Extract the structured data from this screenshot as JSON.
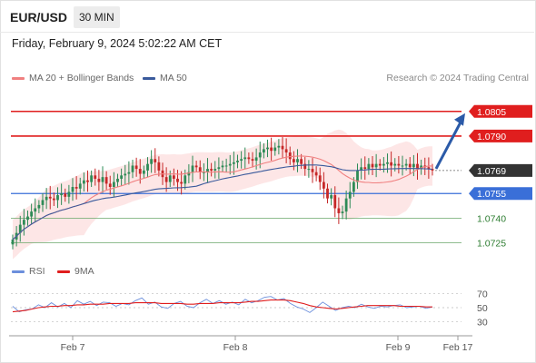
{
  "header": {
    "symbol": "EUR/USD",
    "timeframe": "30 MIN",
    "datetime": "Friday, February 9, 2024 5:02:22 AM CET"
  },
  "legend": {
    "ma20_label": "MA 20 + Bollinger Bands",
    "ma50_label": "MA 50",
    "credit": "Research © 2024 Trading Central"
  },
  "rsi_legend": {
    "rsi_label": "RSI",
    "ma_label": "9MA"
  },
  "colors": {
    "resistance": "#e01e1e",
    "support": "#3a6fd8",
    "green_level": "#6aa76a",
    "current_label": "#333333",
    "candle_up": "#2e8b57",
    "candle_down": "#c62828",
    "ma20": "#f08080",
    "ma50": "#3a5a9c",
    "bollinger_fill": "#fde2e2",
    "arrow": "#2b5aa8",
    "rsi_line": "#6c8fdc",
    "rsi_ma": "#e01e1e"
  },
  "chart_data": [
    {
      "type": "candlestick",
      "title": "EUR/USD 30 MIN",
      "x_ticks": [
        "Feb 7",
        "Feb 8",
        "Feb 9",
        "Feb 17"
      ],
      "ylim": [
        1.0717,
        1.0822
      ],
      "indicators": [
        "MA 20 + Bollinger Bands",
        "MA 50"
      ],
      "levels": [
        {
          "value": "1.0805",
          "price": 1.0805,
          "kind": "resistance"
        },
        {
          "value": "1.0790",
          "price": 1.079,
          "kind": "resistance"
        },
        {
          "value": "1.0769",
          "price": 1.0769,
          "kind": "current"
        },
        {
          "value": "1.0755",
          "price": 1.0755,
          "kind": "support"
        },
        {
          "value": "1.0740",
          "price": 1.074,
          "kind": "minor"
        },
        {
          "value": "1.0725",
          "price": 1.0725,
          "kind": "minor"
        }
      ],
      "close_series": [
        1.0727,
        1.0731,
        1.0736,
        1.0739,
        1.0741,
        1.0744,
        1.0746,
        1.0748,
        1.0751,
        1.0753,
        1.0752,
        1.0751,
        1.0754,
        1.0755,
        1.0753,
        1.0756,
        1.0759,
        1.0758,
        1.0761,
        1.0763,
        1.0762,
        1.0766,
        1.0764,
        1.0762,
        1.0765,
        1.0761,
        1.0759,
        1.0762,
        1.0764,
        1.0766,
        1.0767,
        1.0768,
        1.0772,
        1.077,
        1.0767,
        1.0769,
        1.0773,
        1.0776,
        1.0774,
        1.0769,
        1.0765,
        1.0762,
        1.0766,
        1.0764,
        1.0762,
        1.0761,
        1.0766,
        1.0768,
        1.0772,
        1.0771,
        1.0768,
        1.0768,
        1.077,
        1.0769,
        1.077,
        1.0771,
        1.0772,
        1.0772,
        1.0773,
        1.0774,
        1.0775,
        1.0776,
        1.0777,
        1.0776,
        1.0775,
        1.0777,
        1.078,
        1.0782,
        1.0783,
        1.0781,
        1.0783,
        1.0784,
        1.0782,
        1.078,
        1.0776,
        1.0774,
        1.0776,
        1.0773,
        1.077,
        1.077,
        1.0768,
        1.0766,
        1.0762,
        1.0758,
        1.0752,
        1.0754,
        1.0746,
        1.0743,
        1.0744,
        1.0752,
        1.0756,
        1.0762,
        1.0769,
        1.0771,
        1.077,
        1.0773,
        1.0771,
        1.0773,
        1.0772,
        1.0773,
        1.0774,
        1.0772,
        1.0773,
        1.0772,
        1.0772,
        1.0773,
        1.0771,
        1.0773,
        1.077,
        1.0772,
        1.0771,
        1.077,
        1.0769
      ],
      "projection": {
        "from": 1.0769,
        "to": 1.0805
      }
    },
    {
      "type": "line",
      "title": "RSI",
      "y_ticks": [
        70,
        50,
        30
      ],
      "ylim": [
        20,
        80
      ],
      "series": [
        {
          "name": "RSI",
          "values": [
            52,
            44,
            47,
            48,
            54,
            50,
            57,
            51,
            56,
            50,
            60,
            55,
            59,
            53,
            58,
            57,
            52,
            56,
            54,
            60,
            64,
            55,
            58,
            51,
            49,
            56,
            59,
            52,
            50,
            57,
            62,
            56,
            60,
            55,
            58,
            54,
            62,
            57,
            60,
            65,
            66,
            61,
            63,
            56,
            51,
            48,
            43,
            50,
            58,
            52,
            46,
            50,
            52,
            50,
            55,
            51,
            49,
            52,
            51,
            53,
            54,
            50,
            51,
            52,
            49,
            51
          ]
        },
        {
          "name": "9MA",
          "values": [
            44,
            45,
            46,
            48,
            50,
            51,
            52,
            52,
            53,
            53,
            54,
            54,
            55,
            55,
            55,
            56,
            56,
            56,
            56,
            57,
            57,
            57,
            57,
            56,
            56,
            56,
            56,
            55,
            55,
            56,
            56,
            56,
            57,
            57,
            57,
            57,
            58,
            59,
            59,
            60,
            61,
            61,
            61,
            60,
            58,
            56,
            53,
            51,
            50,
            49,
            48,
            49,
            50,
            51,
            52,
            53,
            53,
            53,
            53,
            53,
            52,
            52,
            52,
            52,
            51,
            51
          ]
        }
      ]
    }
  ]
}
